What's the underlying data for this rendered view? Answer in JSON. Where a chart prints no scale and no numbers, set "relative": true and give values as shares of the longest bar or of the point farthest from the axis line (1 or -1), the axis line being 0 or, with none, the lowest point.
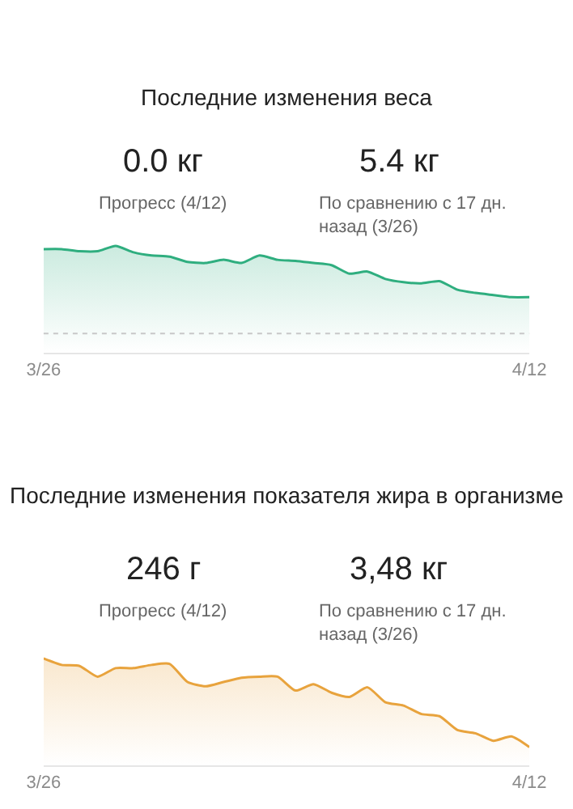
{
  "chart_data": [
    {
      "type": "area",
      "relative": true,
      "title": "Последние изменения веса",
      "annotations": [
        "0.0 кг",
        "Прогресс (4/12)",
        "5.4 кг",
        "По сравнению с 17 дн. назад (3/26)"
      ],
      "categories": [
        "3/26",
        null,
        null,
        null,
        null,
        null,
        null,
        null,
        null,
        null,
        null,
        null,
        null,
        null,
        null,
        null,
        null,
        null,
        null,
        null,
        null,
        null,
        null,
        null,
        null,
        null,
        null,
        "4/12"
      ],
      "series": [
        {
          "color": "#2fae7f",
          "values": [
            0.97,
            0.97,
            0.95,
            0.95,
            1.0,
            0.94,
            0.91,
            0.9,
            0.85,
            0.84,
            0.87,
            0.84,
            0.91,
            0.87,
            0.86,
            0.84,
            0.82,
            0.74,
            0.76,
            0.69,
            0.66,
            0.65,
            0.67,
            0.59,
            0.56,
            0.54,
            0.52,
            0.52
          ]
        }
      ],
      "ref_lines": [
        {
          "axis": "y",
          "value": 0.18,
          "color": "#c8c8c8",
          "line_style": "dotted"
        }
      ]
    },
    {
      "type": "area",
      "relative": true,
      "title": "Последние изменения показателя жира в организме",
      "annotations": [
        "246 г",
        "Прогресс (4/12)",
        "3,48 кг",
        "По сравнению с 17 дн. назад (3/26)"
      ],
      "categories": [
        "3/26",
        null,
        null,
        null,
        null,
        null,
        null,
        null,
        null,
        null,
        null,
        null,
        null,
        null,
        null,
        null,
        null,
        null,
        null,
        null,
        null,
        null,
        null,
        null,
        null,
        null,
        null,
        "4/12"
      ],
      "series": [
        {
          "color": "#e8a33d",
          "values": [
            1.0,
            0.94,
            0.93,
            0.83,
            0.91,
            0.91,
            0.94,
            0.95,
            0.78,
            0.74,
            0.78,
            0.82,
            0.83,
            0.83,
            0.7,
            0.76,
            0.68,
            0.64,
            0.73,
            0.59,
            0.56,
            0.48,
            0.46,
            0.33,
            0.3,
            0.23,
            0.27,
            0.17
          ]
        }
      ],
      "line_style": "solid"
    }
  ]
}
